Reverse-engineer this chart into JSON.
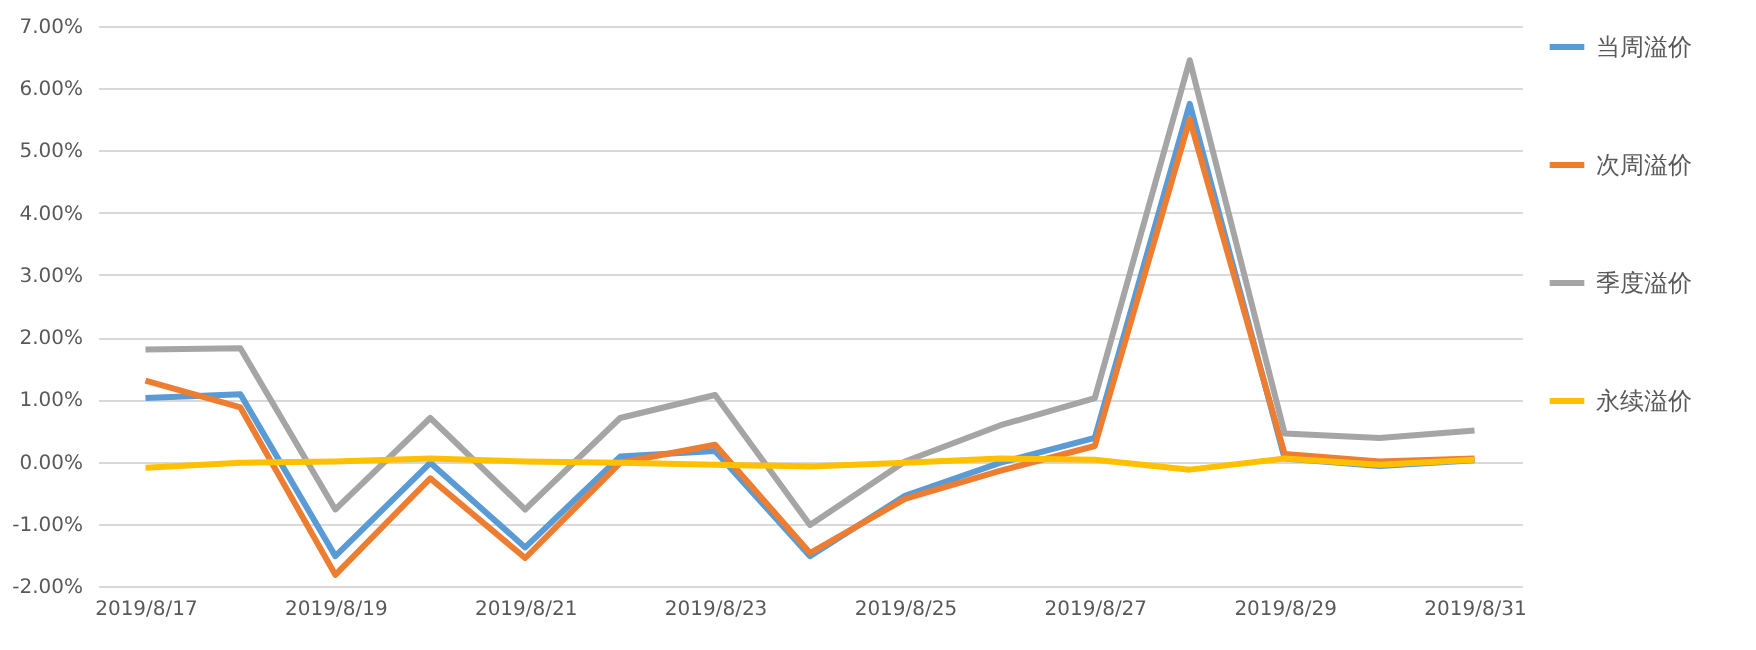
{
  "chart_data": {
    "type": "line",
    "categories": [
      "2019/8/17",
      null,
      "2019/8/19",
      null,
      "2019/8/21",
      null,
      "2019/8/23",
      null,
      "2019/8/25",
      null,
      "2019/8/27",
      null,
      "2019/8/29",
      null,
      "2019/8/31"
    ],
    "series": [
      {
        "name": "当周溢价",
        "color": "#5b9bd5",
        "values": [
          1.02,
          1.08,
          -1.52,
          -0.02,
          -1.38,
          0.08,
          0.17,
          -1.52,
          -0.55,
          -0.02,
          0.38,
          5.75,
          0.05,
          -0.07,
          0.02
        ]
      },
      {
        "name": "次周溢价",
        "color": "#ed7d31",
        "values": [
          1.3,
          0.87,
          -1.82,
          -0.27,
          -1.55,
          -0.02,
          0.27,
          -1.47,
          -0.6,
          -0.15,
          0.25,
          5.5,
          0.12,
          0.0,
          0.05
        ]
      },
      {
        "name": "季度溢价",
        "color": "#a5a5a5",
        "values": [
          1.8,
          1.82,
          -0.77,
          0.7,
          -0.77,
          0.7,
          1.07,
          -1.02,
          0.0,
          0.58,
          1.02,
          6.45,
          0.45,
          0.38,
          0.5
        ]
      },
      {
        "name": "永续溢价",
        "color": "#ffc000",
        "values": [
          -0.1,
          -0.02,
          0.0,
          0.05,
          0.0,
          -0.02,
          -0.05,
          -0.08,
          -0.02,
          0.05,
          0.03,
          -0.13,
          0.05,
          -0.05,
          0.03
        ]
      }
    ],
    "ylim": [
      -2,
      7
    ],
    "yticks": [
      {
        "value": -2,
        "label": "-2.00%"
      },
      {
        "value": -1,
        "label": "-1.00%"
      },
      {
        "value": 0,
        "label": "0.00%"
      },
      {
        "value": 1,
        "label": "1.00%"
      },
      {
        "value": 2,
        "label": "2.00%"
      },
      {
        "value": 3,
        "label": "3.00%"
      },
      {
        "value": 4,
        "label": "4.00%"
      },
      {
        "value": 5,
        "label": "5.00%"
      },
      {
        "value": 6,
        "label": "6.00%"
      },
      {
        "value": 7,
        "label": "7.00%"
      }
    ],
    "grid": "y",
    "legend": "right",
    "marker": "none",
    "line_style": "solid"
  }
}
